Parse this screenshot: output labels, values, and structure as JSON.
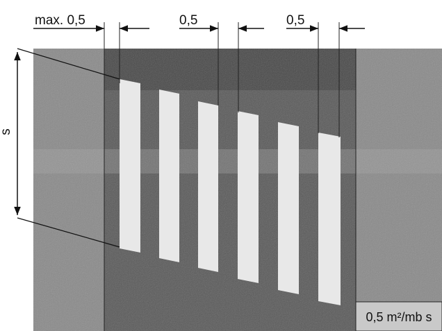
{
  "dimensions": {
    "top_left": "max. 0,5",
    "top_middle": "0,5",
    "top_right": "0,5",
    "side": "s"
  },
  "legend_box": "0,5 m²/mb s"
}
